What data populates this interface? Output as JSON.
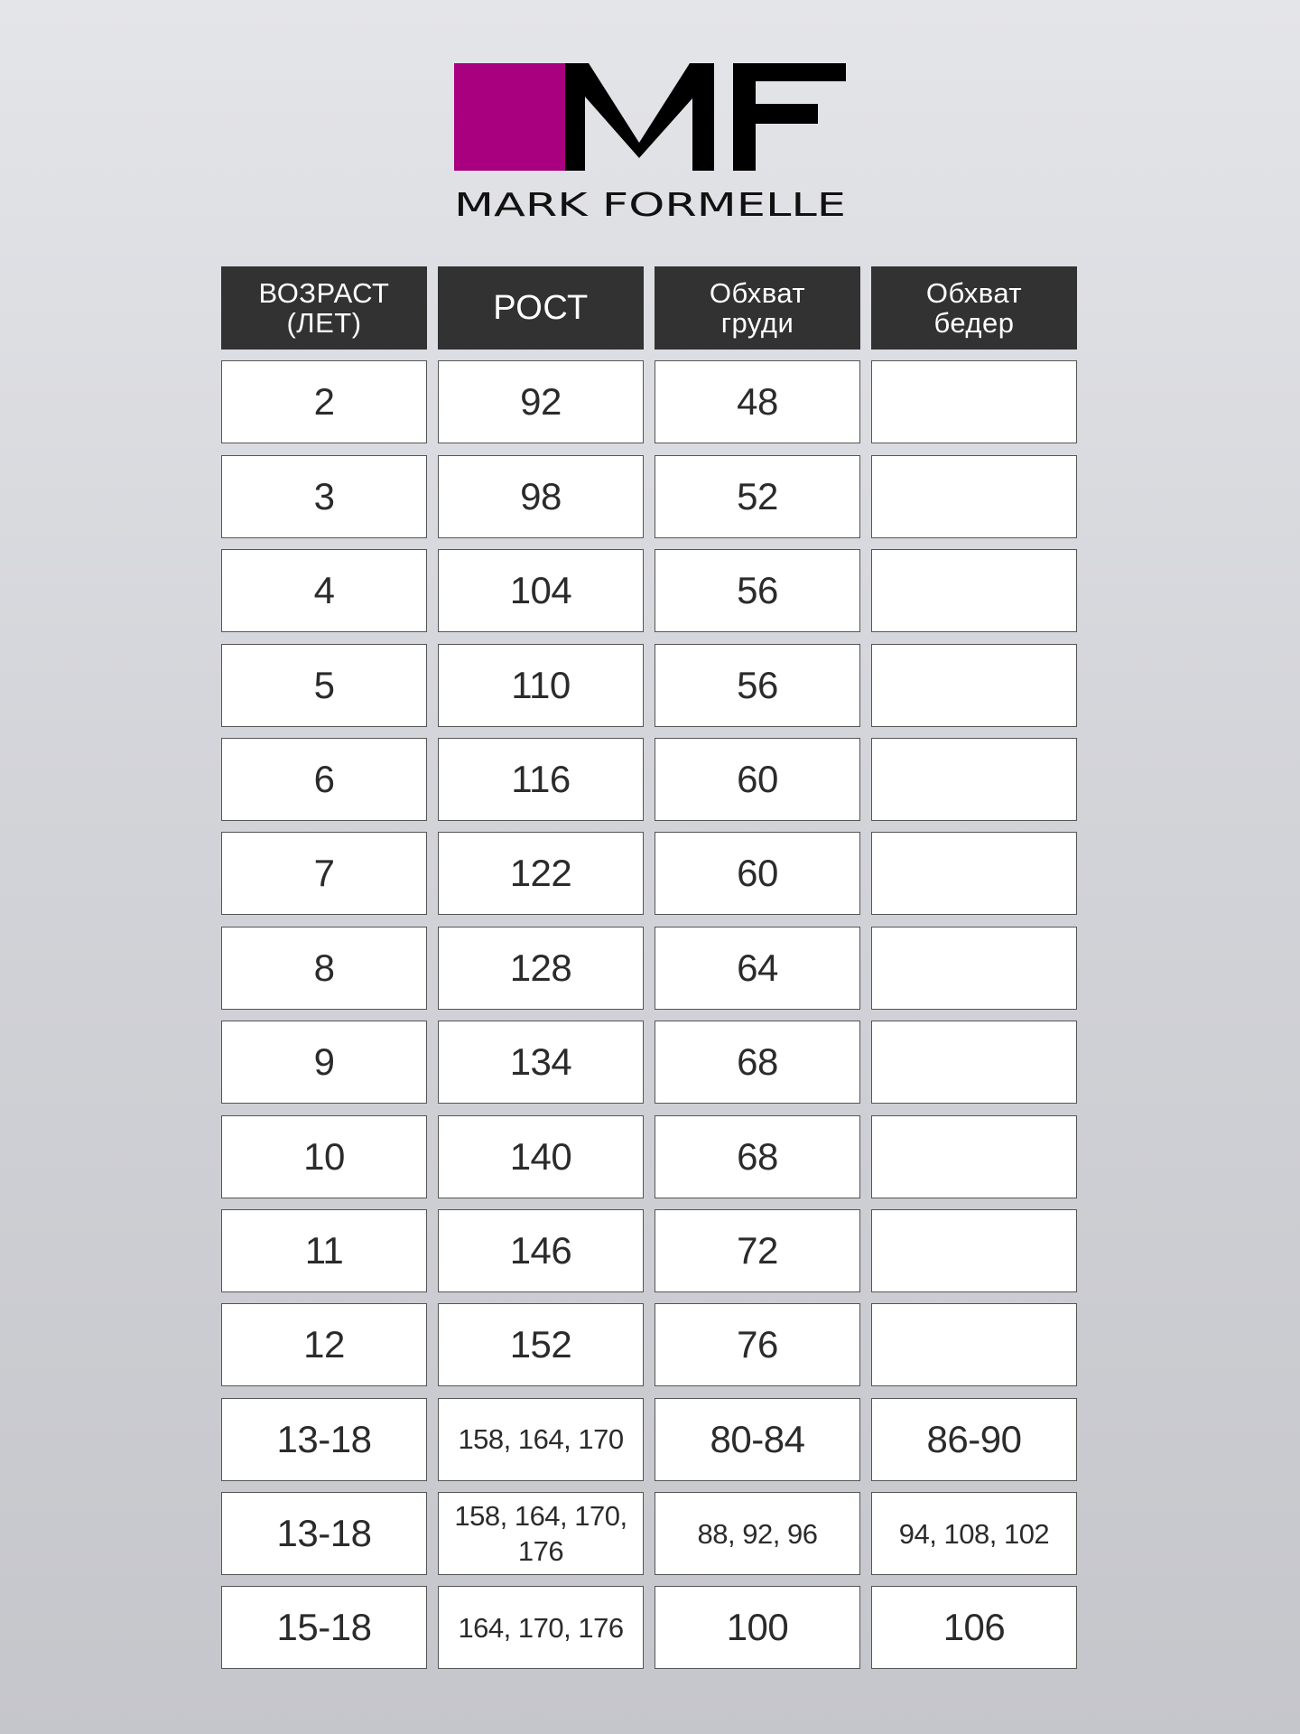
{
  "brand": {
    "logo_letters": "MF",
    "name": "MARK FORMELLE",
    "accent_color": "#a8007e",
    "logo_color": "#000000"
  },
  "table": {
    "headers": [
      "ВОЗРАСТ (ЛЕТ)",
      "РОСТ",
      "Обхват груди",
      "Обхват бедер"
    ],
    "rows": [
      [
        "2",
        "92",
        "48",
        ""
      ],
      [
        "3",
        "98",
        "52",
        ""
      ],
      [
        "4",
        "104",
        "56",
        ""
      ],
      [
        "5",
        "110",
        "56",
        ""
      ],
      [
        "6",
        "116",
        "60",
        ""
      ],
      [
        "7",
        "122",
        "60",
        ""
      ],
      [
        "8",
        "128",
        "64",
        ""
      ],
      [
        "9",
        "134",
        "68",
        ""
      ],
      [
        "10",
        "140",
        "68",
        ""
      ],
      [
        "11",
        "146",
        "72",
        ""
      ],
      [
        "12",
        "152",
        "76",
        ""
      ],
      [
        "13-18",
        "158, 164, 170",
        "80-84",
        "86-90"
      ],
      [
        "13-18",
        "158, 164, 170, 176",
        "88, 92, 96",
        "94, 108, 102"
      ],
      [
        "15-18",
        "164, 170, 176",
        "100",
        "106"
      ]
    ]
  }
}
